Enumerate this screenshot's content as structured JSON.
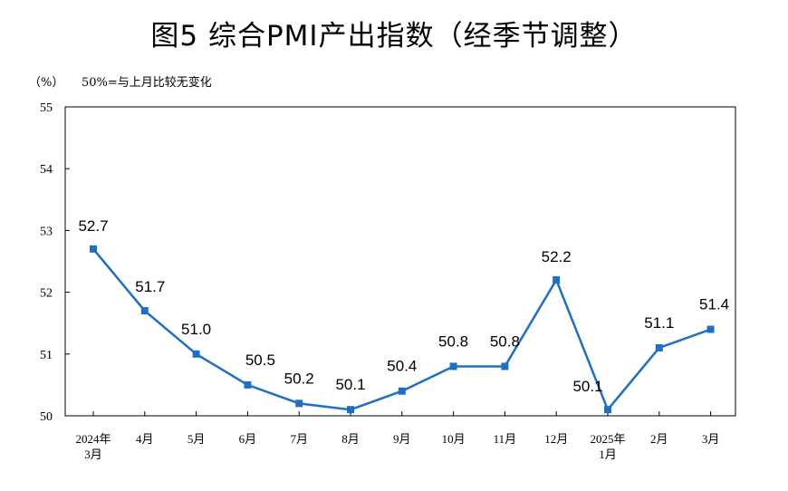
{
  "chart_data": {
    "type": "line",
    "title": "图5  综合PMI产出指数（经季节调整）",
    "unit_label": "（%）",
    "note": "50%=与上月比较无变化",
    "categories": [
      [
        "2024年",
        "3月"
      ],
      [
        "4月"
      ],
      [
        "5月"
      ],
      [
        "6月"
      ],
      [
        "7月"
      ],
      [
        "8月"
      ],
      [
        "9月"
      ],
      [
        "10月"
      ],
      [
        "11月"
      ],
      [
        "12月"
      ],
      [
        "2025年",
        "1月"
      ],
      [
        "2月"
      ],
      [
        "3月"
      ]
    ],
    "series": [
      {
        "values": [
          52.7,
          51.7,
          51.0,
          50.5,
          50.2,
          50.1,
          50.4,
          50.8,
          50.8,
          52.2,
          50.1,
          51.1,
          51.4
        ]
      }
    ],
    "data_labels": [
      "52.7",
      "51.7",
      "51.0",
      "50.5",
      "50.2",
      "50.1",
      "50.4",
      "50.8",
      "50.8",
      "52.2",
      "50.1",
      "51.1",
      "51.4"
    ],
    "yticks": [
      50,
      51,
      52,
      53,
      54,
      55
    ],
    "ylim": [
      50,
      55
    ],
    "grid": false,
    "line_color": "#1f6fc5",
    "marker": "square"
  }
}
